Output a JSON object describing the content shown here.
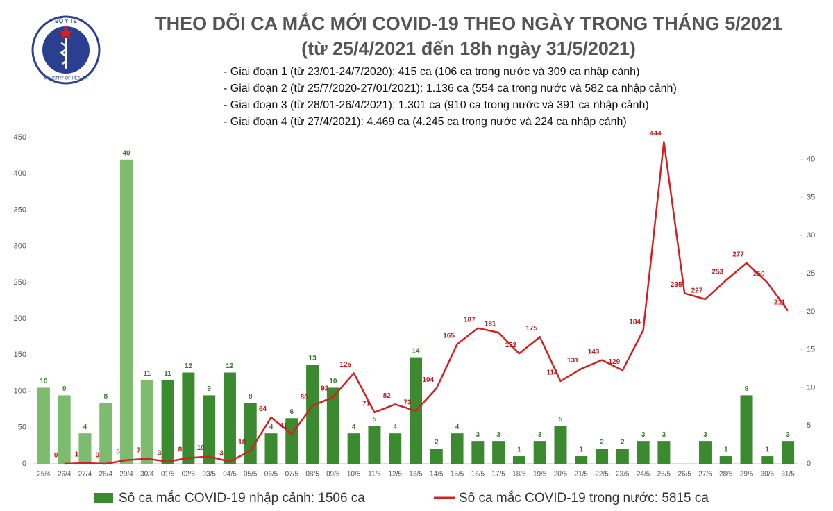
{
  "logo": {
    "top_text": "BỘ Y TẾ",
    "bottom_text": "MINISTRY OF HEALTH"
  },
  "chart_data": {
    "type": "bar-line",
    "title": "THEO DÕI CA MẮC MỚI COVID-19 THEO NGÀY TRONG THÁNG 5/2021",
    "subtitle": "(từ 25/4/2021 đến 18h ngày 31/5/2021)",
    "notes": [
      "- Giai đoạn 1 (từ 23/01-24/7/2020): 415 ca (106 ca trong nước và 309 ca nhập cảnh)",
      "- Giai đoạn 2 (từ 25/7/2020-27/01/2021): 1.136 ca (554 ca trong nước và 582 ca nhập cảnh)",
      "- Giai đoạn 3 (từ 28/01-26/4/2021): 1.301 ca (910 ca trong nước và 391 ca nhập cảnh)",
      "- Giai đoạn 4 (từ 27/4/2021): 4.469 ca (4.245 ca trong nước và 224 ca nhập cảnh)"
    ],
    "categories": [
      "25/4",
      "26/4",
      "27/4",
      "28/4",
      "29/4",
      "30/4",
      "01/5",
      "02/5",
      "03/5",
      "04/5",
      "05/5",
      "06/5",
      "07/5",
      "08/5",
      "09/5",
      "10/5",
      "11/5",
      "12/5",
      "13/5",
      "14/5",
      "15/5",
      "16/5",
      "17/5",
      "18/5",
      "19/5",
      "20/5",
      "21/5",
      "22/5",
      "23/5",
      "24/5",
      "25/5",
      "26/5",
      "27/5",
      "28/5",
      "29/5",
      "30/5",
      "31/5"
    ],
    "series": [
      {
        "name": "Số ca mắc COVID-19 nhập cảnh: 1506 ca",
        "type": "bar",
        "axis": "y2",
        "color": "#3b8a2f",
        "colors": [
          "#7dbb6f",
          "#7dbb6f",
          "#7dbb6f",
          "#7dbb6f",
          "#7dbb6f",
          "#7dbb6f",
          "#3b8a2f",
          "#3b8a2f",
          "#3b8a2f",
          "#3b8a2f",
          "#3b8a2f",
          "#3b8a2f",
          "#3b8a2f",
          "#3b8a2f",
          "#3b8a2f",
          "#3b8a2f",
          "#3b8a2f",
          "#3b8a2f",
          "#3b8a2f",
          "#3b8a2f",
          "#3b8a2f",
          "#3b8a2f",
          "#3b8a2f",
          "#3b8a2f",
          "#3b8a2f",
          "#3b8a2f",
          "#3b8a2f",
          "#3b8a2f",
          "#3b8a2f",
          "#3b8a2f",
          "#3b8a2f",
          "#3b8a2f",
          "#3b8a2f",
          "#3b8a2f",
          "#3b8a2f",
          "#3b8a2f",
          "#3b8a2f"
        ],
        "values": [
          10,
          9,
          4,
          8,
          40,
          11,
          11,
          12,
          9,
          12,
          8,
          4,
          6,
          13,
          10,
          4,
          5,
          4,
          14,
          2,
          4,
          3,
          3,
          1,
          3,
          5,
          1,
          2,
          2,
          3,
          3,
          null,
          3,
          1,
          9,
          1,
          3
        ]
      },
      {
        "name": "Số ca mắc COVID-19 trong nước: 5815 ca",
        "type": "line",
        "color": "#d42020",
        "values": [
          null,
          0,
          1,
          0,
          5,
          7,
          3,
          8,
          10,
          3,
          18,
          64,
          41,
          80,
          92,
          125,
          71,
          82,
          73,
          104,
          165,
          187,
          181,
          152,
          175,
          114,
          131,
          143,
          129,
          184,
          444,
          235,
          227,
          253,
          277,
          250,
          211
        ]
      }
    ],
    "ylim": [
      0,
      450
    ],
    "yticks": [
      0,
      50,
      100,
      150,
      200,
      250,
      300,
      350,
      400,
      450
    ],
    "y2lim": [
      0,
      42.9
    ],
    "y2ticks": [
      0,
      5,
      10,
      15,
      20,
      25,
      30,
      35,
      40
    ]
  }
}
